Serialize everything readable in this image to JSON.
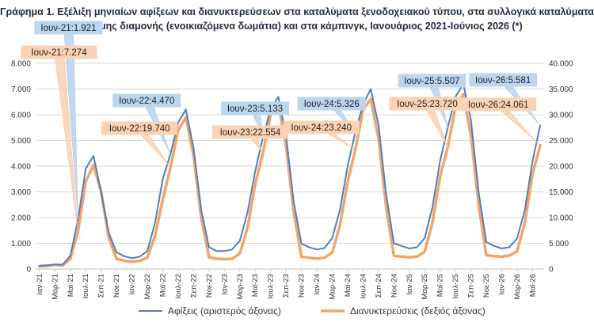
{
  "title": {
    "line1": "Γράφημα 1. Εξέλιξη μηνιαίων αφίξεων και διανυκτερεύσεων στα καταλύματα ξενοδοχειακού τύπου, στα συλλογικά καταλύματα",
    "line2": "σύντομης διαμονής (ενοικιαζόμενα δωμάτια) και στα κάμπινγκ, Ιανουάριος 2021-Ιούνιος 2026 (*)"
  },
  "colors": {
    "arrivals": "#4f7fbf",
    "overnights": "#f0a66b",
    "arrivals_callout": "#bcd6f0",
    "overnights_callout": "#fbd3b4",
    "grid": "#d9d9d9"
  },
  "chart_data": {
    "type": "line",
    "x": [
      "Ιαν-21",
      "Φεβ-21",
      "Μαρ-21",
      "Απρ-21",
      "Μαϊ-21",
      "Ιουν-21",
      "Ιουλ-21",
      "Αυγ-21",
      "Σεπ-21",
      "Οκτ-21",
      "Νοε-21",
      "Δεκ-21",
      "Ιαν-22",
      "Φεβ-22",
      "Μαρ-22",
      "Απρ-22",
      "Μαϊ-22",
      "Ιουν-22",
      "Ιουλ-22",
      "Αυγ-22",
      "Σεπ-22",
      "Οκτ-22",
      "Νοε-22",
      "Δεκ-22",
      "Ιαν-23",
      "Φεβ-23",
      "Μαρ-23",
      "Απρ-23",
      "Μαϊ-23",
      "Ιουν-23",
      "Ιουλ-23",
      "Αυγ-23",
      "Σεπ-23",
      "Οκτ-23",
      "Νοε-23",
      "Δεκ-23",
      "Ιαν-24",
      "Φεβ-24",
      "Μαρ-24",
      "Απρ-24",
      "Μαϊ-24",
      "Ιουν-24",
      "Ιουλ-24",
      "Αυγ-24",
      "Σεπ-24",
      "Οκτ-24",
      "Νοε-24",
      "Δεκ-24",
      "Ιαν-25",
      "Φεβ-25",
      "Μαρ-25",
      "Απρ-25",
      "Μαϊ-25",
      "Ιουν-25",
      "Ιουλ-25",
      "Αυγ-25",
      "Σεπ-25",
      "Οκτ-25",
      "Νοε-25",
      "Δεκ-25",
      "Ιαν-26",
      "Φεβ-26",
      "Μαρ-26",
      "Απρ-26",
      "Μαϊ-26",
      "Ιουν-26"
    ],
    "x_tick_labels": [
      "Ιαν-21",
      "Μαρ-21",
      "Μαϊ-21",
      "Ιουλ-21",
      "Σεπ-21",
      "Νοε-21",
      "Ιαν-22",
      "Μαρ-22",
      "Μαϊ-22",
      "Ιουλ-22",
      "Σεπ-22",
      "Νοε-22",
      "Ιαν-23",
      "Μαρ-23",
      "Μαϊ-23",
      "Ιουλ-23",
      "Σεπ-23",
      "Νοε-23",
      "Ιαν-24",
      "Μαρ-24",
      "Μαϊ-24",
      "Ιουλ-24",
      "Σεπ-24",
      "Νοε-24",
      "Ιαν-25",
      "Μαρ-25",
      "Μαϊ-25",
      "Ιουλ-25",
      "Σεπ-25",
      "Νοε-25",
      "Ιαν-26",
      "Μαρ-26",
      "Μαϊ-26"
    ],
    "series": [
      {
        "name": "Αφίξεις (αριστερός άξονας)",
        "axis": "left",
        "values": [
          130,
          150,
          180,
          170,
          520,
          1921,
          3900,
          4400,
          3000,
          1400,
          650,
          500,
          420,
          480,
          700,
          1800,
          3500,
          4470,
          5700,
          6200,
          4700,
          2300,
          850,
          700,
          700,
          760,
          1100,
          2200,
          3800,
          5133,
          6200,
          6700,
          5200,
          2600,
          980,
          850,
          760,
          820,
          1200,
          2300,
          4000,
          5326,
          6400,
          7000,
          5600,
          2900,
          1000,
          900,
          800,
          850,
          1200,
          2400,
          4200,
          5507,
          6700,
          7200,
          5800,
          3000,
          1050,
          900,
          800,
          850,
          1200,
          2300,
          4200,
          5581
        ]
      },
      {
        "name": "Διανυκτερεύσεις (δεξιός άξονας)",
        "axis": "right",
        "values": [
          500,
          600,
          800,
          700,
          2000,
          7274,
          17000,
          20200,
          15000,
          6000,
          2000,
          1600,
          1400,
          1600,
          2200,
          6500,
          13500,
          19740,
          27000,
          29500,
          22000,
          10000,
          2300,
          2000,
          1900,
          2000,
          3000,
          8000,
          16500,
          22554,
          30000,
          32000,
          24000,
          11000,
          2400,
          2200,
          2000,
          2200,
          3200,
          8500,
          17000,
          23240,
          31000,
          33000,
          25500,
          12000,
          2600,
          2400,
          2300,
          2400,
          3400,
          9000,
          18000,
          23720,
          31500,
          34000,
          26000,
          12500,
          2700,
          2500,
          2400,
          2600,
          3500,
          9000,
          18500,
          24061
        ]
      }
    ],
    "y_left": {
      "min": 0,
      "max": 8000,
      "ticks": [
        "0",
        "1.000",
        "2.000",
        "3.000",
        "4.000",
        "5.000",
        "6.000",
        "7.000",
        "8.000"
      ]
    },
    "y_right": {
      "min": 0,
      "max": 40000,
      "ticks": [
        "0",
        "5.000",
        "10.000",
        "15.000",
        "20.000",
        "25.000",
        "30.000",
        "35.000",
        "40.000"
      ]
    },
    "grid": true,
    "legend_position": "bottom",
    "annotations": [
      {
        "series": 0,
        "index": 5,
        "text": "Ιουν-21:1.921"
      },
      {
        "series": 1,
        "index": 5,
        "text": "Ιουν-21:7.274"
      },
      {
        "series": 0,
        "index": 17,
        "text": "Ιουν-22:4.470"
      },
      {
        "series": 1,
        "index": 17,
        "text": "Ιουν-22:19.740"
      },
      {
        "series": 0,
        "index": 29,
        "text": "Ιουν-23:5.133"
      },
      {
        "series": 1,
        "index": 29,
        "text": "Ιουν-23:22.554"
      },
      {
        "series": 0,
        "index": 41,
        "text": "Ιουν-24:5.326"
      },
      {
        "series": 1,
        "index": 41,
        "text": "Ιουν-24:23.240"
      },
      {
        "series": 0,
        "index": 53,
        "text": "Ιουν-25:5.507"
      },
      {
        "series": 1,
        "index": 53,
        "text": "Ιουν-25:23.720"
      },
      {
        "series": 0,
        "index": 65,
        "text": "Ιουν-26:5.581"
      },
      {
        "series": 1,
        "index": 65,
        "text": "Ιουν-26:24.061"
      }
    ]
  }
}
